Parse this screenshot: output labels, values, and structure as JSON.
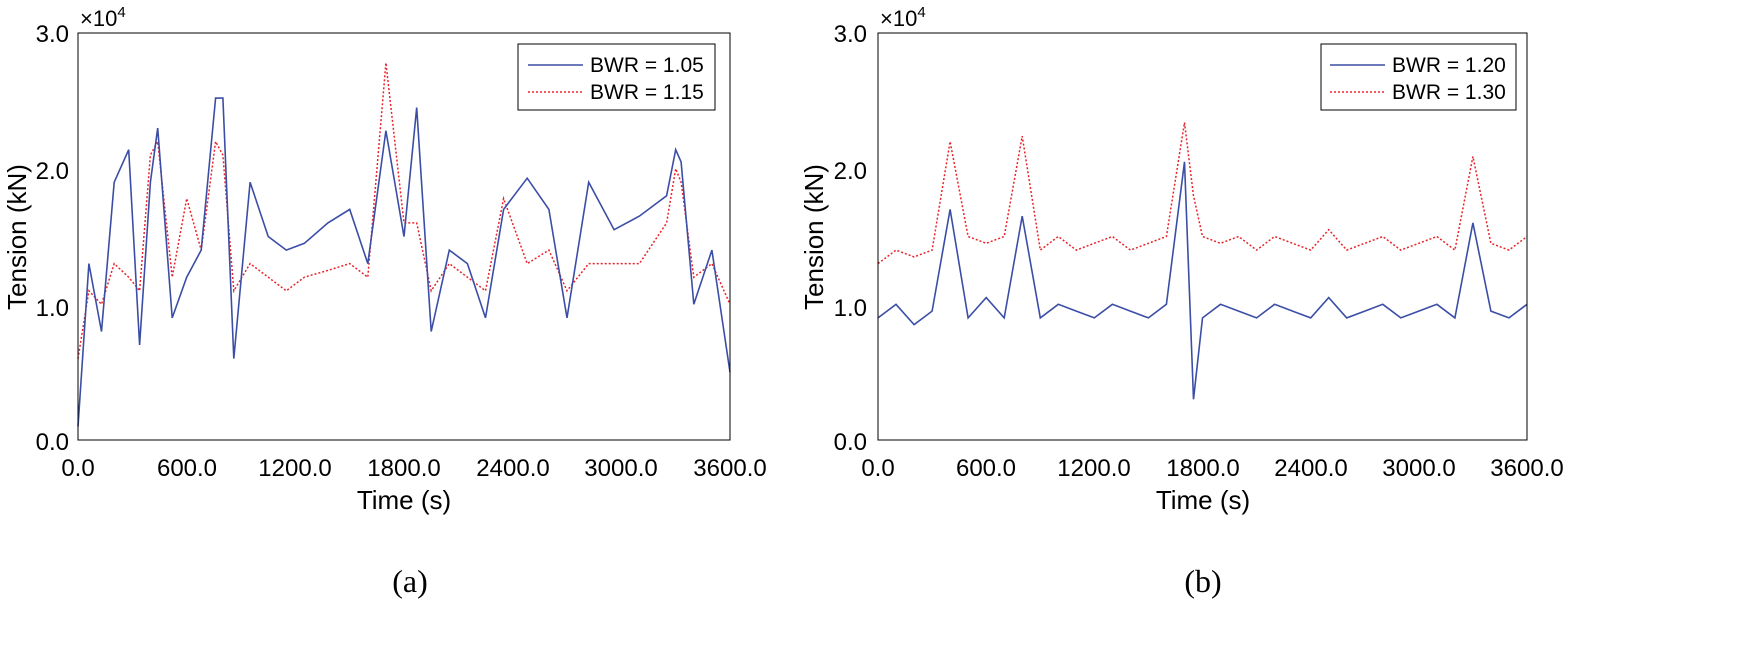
{
  "chart_data": [
    {
      "type": "line",
      "panel_caption": "(a)",
      "xlabel": "Time (s)",
      "ylabel": "Tension (kN)",
      "xlim": [
        0,
        3600
      ],
      "ylim": [
        0,
        30000
      ],
      "xticks": [
        "0.0",
        "600.0",
        "1200.0",
        "1800.0",
        "2400.0",
        "3000.0",
        "3600.0"
      ],
      "yticks": [
        "0.0",
        "1.0",
        "2.0",
        "3.0"
      ],
      "y_exponent_label": "×10",
      "y_exponent_power": "4",
      "legend_position": "top-right",
      "series": [
        {
          "name": "BWR = 1.05",
          "style": "solid",
          "color": "#3b4ea6",
          "x": [
            0,
            60,
            130,
            200,
            280,
            340,
            400,
            440,
            520,
            600,
            680,
            760,
            800,
            860,
            950,
            1050,
            1150,
            1250,
            1380,
            1500,
            1600,
            1700,
            1800,
            1870,
            1950,
            2050,
            2150,
            2250,
            2350,
            2480,
            2600,
            2700,
            2820,
            2960,
            3100,
            3250,
            3300,
            3330,
            3400,
            3500,
            3600
          ],
          "values": [
            1000,
            13000,
            8000,
            19000,
            21400,
            7000,
            19000,
            23000,
            9000,
            12000,
            14000,
            25200,
            25200,
            6000,
            19000,
            15000,
            14000,
            14500,
            16000,
            17000,
            13000,
            22800,
            15000,
            24500,
            8000,
            14000,
            13000,
            9000,
            17000,
            19300,
            17000,
            9000,
            19000,
            15500,
            16500,
            18000,
            21400,
            20500,
            10000,
            14000,
            5000
          ]
        },
        {
          "name": "BWR = 1.15",
          "style": "dotted",
          "color": "#e8242a",
          "x": [
            0,
            60,
            130,
            200,
            280,
            340,
            400,
            440,
            520,
            600,
            680,
            760,
            800,
            860,
            950,
            1050,
            1150,
            1250,
            1380,
            1500,
            1600,
            1700,
            1800,
            1870,
            1950,
            2050,
            2150,
            2250,
            2350,
            2480,
            2600,
            2700,
            2820,
            2960,
            3100,
            3250,
            3300,
            3330,
            3400,
            3500,
            3600
          ],
          "values": [
            6000,
            11000,
            10000,
            13000,
            12000,
            11000,
            21000,
            22000,
            12000,
            17800,
            14000,
            22000,
            21000,
            11000,
            13000,
            12000,
            11000,
            12000,
            12500,
            13000,
            12000,
            27800,
            16000,
            16000,
            11000,
            13000,
            12000,
            11000,
            17800,
            13000,
            14000,
            11000,
            13000,
            13000,
            13000,
            16000,
            20000,
            19000,
            12000,
            13000,
            10000
          ]
        }
      ]
    },
    {
      "type": "line",
      "panel_caption": "(b)",
      "xlabel": "Time (s)",
      "ylabel": "Tension (kN)",
      "xlim": [
        0,
        3600
      ],
      "ylim": [
        0,
        30000
      ],
      "xticks": [
        "0.0",
        "600.0",
        "1200.0",
        "1800.0",
        "2400.0",
        "3000.0",
        "3600.0"
      ],
      "yticks": [
        "0.0",
        "1.0",
        "2.0",
        "3.0"
      ],
      "y_exponent_label": "×10",
      "y_exponent_power": "4",
      "legend_position": "top-right",
      "series": [
        {
          "name": "BWR = 1.20",
          "style": "solid",
          "color": "#3b4ea6",
          "x": [
            0,
            100,
            200,
            300,
            400,
            500,
            600,
            700,
            800,
            900,
            1000,
            1100,
            1200,
            1300,
            1400,
            1500,
            1600,
            1700,
            1750,
            1800,
            1900,
            2000,
            2100,
            2200,
            2300,
            2400,
            2500,
            2600,
            2700,
            2800,
            2900,
            3000,
            3100,
            3200,
            3300,
            3400,
            3500,
            3600
          ],
          "values": [
            9000,
            10000,
            8500,
            9500,
            17000,
            9000,
            10500,
            9000,
            16500,
            9000,
            10000,
            9500,
            9000,
            10000,
            9500,
            9000,
            10000,
            20500,
            3000,
            9000,
            10000,
            9500,
            9000,
            10000,
            9500,
            9000,
            10500,
            9000,
            9500,
            10000,
            9000,
            9500,
            10000,
            9000,
            16000,
            9500,
            9000,
            10000
          ]
        },
        {
          "name": "BWR = 1.30",
          "style": "dotted",
          "color": "#e8242a",
          "x": [
            0,
            100,
            200,
            300,
            400,
            500,
            600,
            700,
            800,
            900,
            1000,
            1100,
            1200,
            1300,
            1400,
            1500,
            1600,
            1700,
            1750,
            1800,
            1900,
            2000,
            2100,
            2200,
            2300,
            2400,
            2500,
            2600,
            2700,
            2800,
            2900,
            3000,
            3100,
            3200,
            3300,
            3400,
            3500,
            3600
          ],
          "values": [
            13000,
            14000,
            13500,
            14000,
            22000,
            15000,
            14500,
            15000,
            22400,
            14000,
            15000,
            14000,
            14500,
            15000,
            14000,
            14500,
            15000,
            23400,
            18000,
            15000,
            14500,
            15000,
            14000,
            15000,
            14500,
            14000,
            15500,
            14000,
            14500,
            15000,
            14000,
            14500,
            15000,
            14000,
            20900,
            14500,
            14000,
            15000
          ]
        }
      ]
    }
  ]
}
